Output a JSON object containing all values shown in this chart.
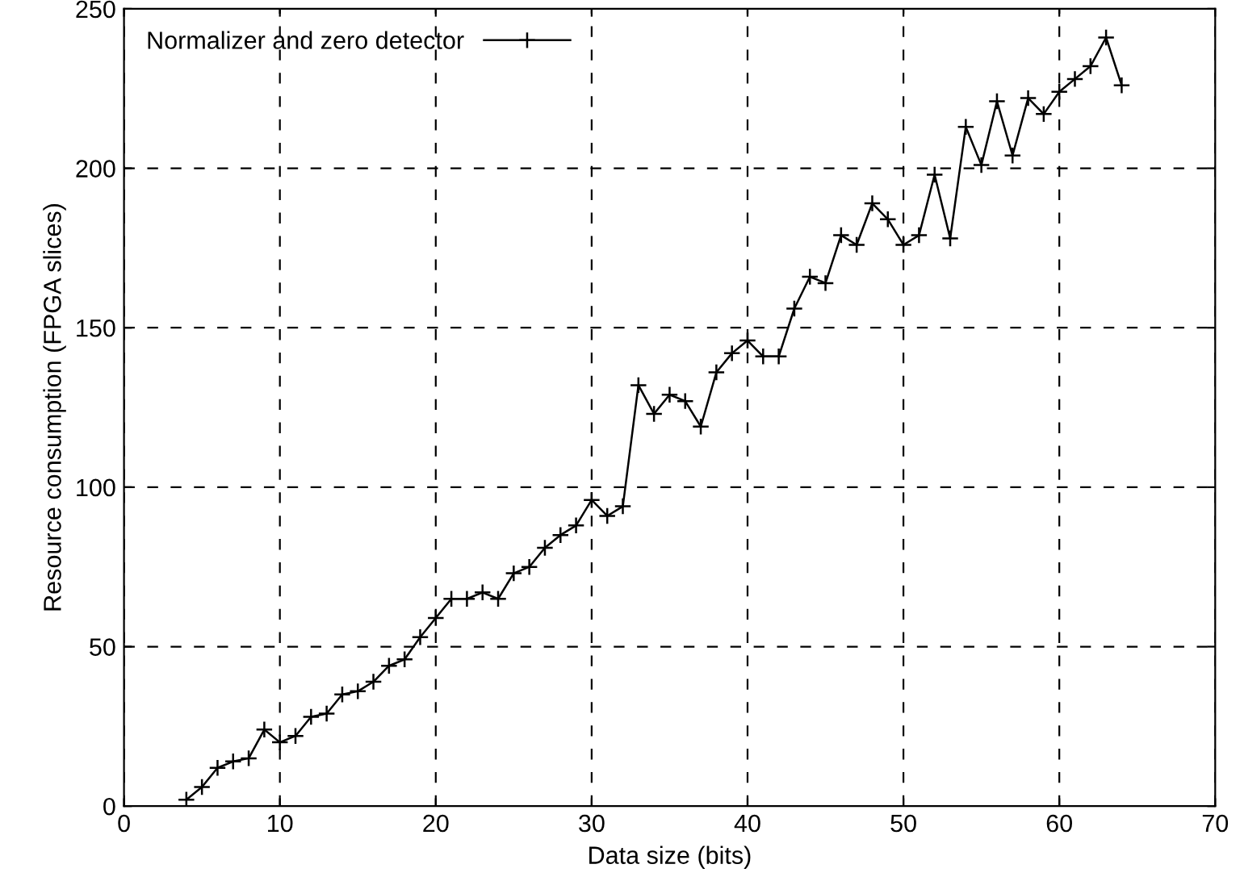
{
  "chart_data": {
    "type": "line",
    "xlabel": "Data size (bits)",
    "ylabel": "Resource consumption (FPGA slices)",
    "xlim": [
      0,
      70
    ],
    "ylim": [
      0,
      250
    ],
    "xticks": [
      0,
      10,
      20,
      30,
      40,
      50,
      60,
      70
    ],
    "yticks": [
      0,
      50,
      100,
      150,
      200,
      250
    ],
    "grid": true,
    "legend": "top left",
    "marker": "cross",
    "line_style": "solid",
    "series": [
      {
        "name": "Normalizer and zero detector",
        "color": "#000000",
        "x": [
          4,
          5,
          6,
          7,
          8,
          9,
          10,
          11,
          12,
          13,
          14,
          15,
          16,
          17,
          18,
          19,
          20,
          21,
          22,
          23,
          24,
          25,
          26,
          27,
          28,
          29,
          30,
          31,
          32,
          33,
          34,
          35,
          36,
          37,
          38,
          39,
          40,
          41,
          42,
          43,
          44,
          45,
          46,
          47,
          48,
          49,
          50,
          51,
          52,
          53,
          54,
          55,
          56,
          57,
          58,
          59,
          60,
          61,
          62,
          63,
          64
        ],
        "values": [
          2,
          6,
          12,
          14,
          15,
          24,
          20,
          22,
          28,
          29,
          35,
          36,
          39,
          44,
          46,
          53,
          59,
          65,
          65,
          67,
          65,
          73,
          75,
          81,
          85,
          88,
          96,
          91,
          94,
          132,
          123,
          129,
          127,
          119,
          136,
          142,
          146,
          141,
          141,
          156,
          166,
          164,
          179,
          176,
          189,
          184,
          176,
          179,
          198,
          178,
          213,
          201,
          221,
          204,
          222,
          217,
          224,
          228,
          232,
          241,
          226
        ]
      }
    ]
  }
}
